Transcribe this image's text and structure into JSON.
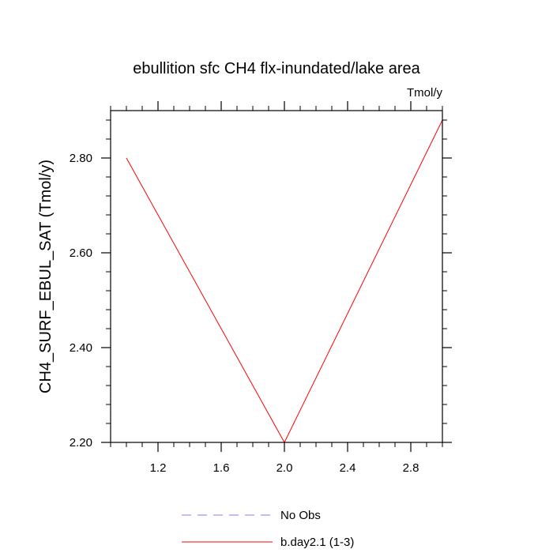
{
  "chart_data": {
    "type": "line",
    "title": "ebullition sfc CH4 flx-inundated/lake area",
    "units": "Tmol/y",
    "ylabel": "CH4_SURF_EBUL_SAT  (Tmol/y)",
    "xlabel": "",
    "xlim": [
      0.9,
      3.0
    ],
    "ylim": [
      2.2,
      2.9
    ],
    "x_ticks": [
      1.2,
      1.6,
      2.0,
      2.4,
      2.8
    ],
    "x_tick_labels": [
      "1.2",
      "1.6",
      "2.0",
      "2.4",
      "2.8"
    ],
    "y_ticks": [
      2.2,
      2.4,
      2.6,
      2.8
    ],
    "y_tick_labels": [
      "2.20",
      "2.40",
      "2.60",
      "2.80"
    ],
    "series": [
      {
        "name": "b.day2.1 (1-3)",
        "color": "#ff0000",
        "style": "solid",
        "x": [
          1,
          2,
          3
        ],
        "y": [
          2.8,
          2.2,
          2.88
        ]
      }
    ],
    "legend": [
      {
        "label": "No Obs",
        "color": "#7f7fff",
        "style": "dashed"
      },
      {
        "label": "b.day2.1 (1-3)",
        "color": "#ff0000",
        "style": "solid"
      }
    ],
    "legend_placement": "bottom-center",
    "grid": false
  }
}
